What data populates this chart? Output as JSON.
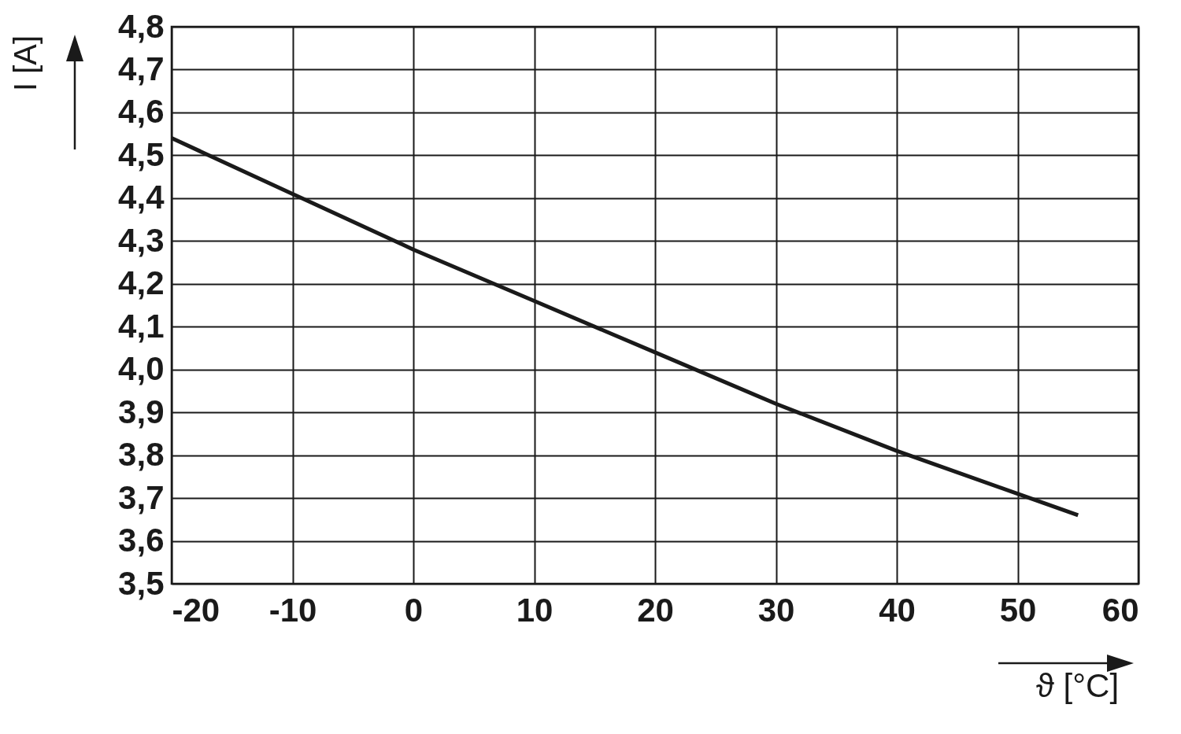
{
  "chart_data": {
    "type": "line",
    "xlabel": "ϑ [°C]",
    "ylabel": "I [A]",
    "x": [
      -20,
      -10,
      0,
      10,
      20,
      30,
      40,
      50,
      55
    ],
    "series": [
      {
        "color": "#1a1a1a",
        "values": [
          4.54,
          4.41,
          4.28,
          4.16,
          4.04,
          3.92,
          3.81,
          3.71,
          3.66
        ]
      }
    ],
    "xlim": [
      -20,
      60
    ],
    "xticks": [
      -20,
      -10,
      0,
      10,
      20,
      30,
      40,
      50,
      60
    ],
    "ylim": [
      3.5,
      4.8
    ],
    "yticks": [
      {
        "value": 3.5,
        "label": "3,5"
      },
      {
        "value": 3.6,
        "label": "3,6"
      },
      {
        "value": 3.7,
        "label": "3,7"
      },
      {
        "value": 3.8,
        "label": "3,8"
      },
      {
        "value": 3.9,
        "label": "3,9"
      },
      {
        "value": 4.0,
        "label": "4,0"
      },
      {
        "value": 4.1,
        "label": "4,1"
      },
      {
        "value": 4.2,
        "label": "4,2"
      },
      {
        "value": 4.3,
        "label": "4,3"
      },
      {
        "value": 4.4,
        "label": "4,4"
      },
      {
        "value": 4.5,
        "label": "4,5"
      },
      {
        "value": 4.6,
        "label": "4,6"
      },
      {
        "value": 4.7,
        "label": "4,7"
      },
      {
        "value": 4.8,
        "label": "4,8"
      }
    ],
    "grid": true,
    "marker": "none",
    "line_style": "solid"
  }
}
